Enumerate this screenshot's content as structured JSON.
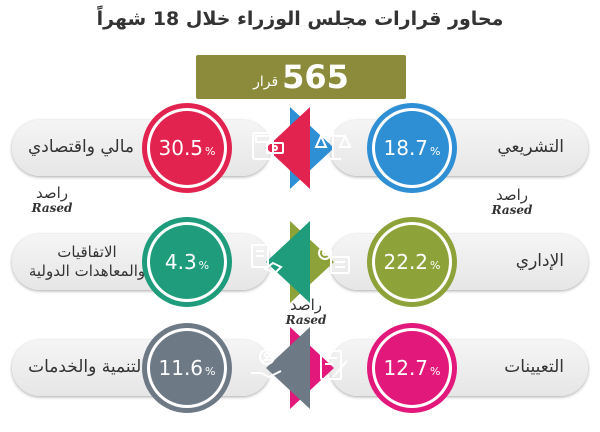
{
  "title": "محاور قرارات مجلس الوزراء خلال 18 شهراً",
  "total": {
    "value": "565",
    "unit": "قرار"
  },
  "watermark": {
    "arabic": "راصد",
    "latin": "Rased"
  },
  "items": [
    {
      "label": "التشريعي",
      "value": "18.7",
      "color": "#2f8fd4",
      "icon": "scales-icon"
    },
    {
      "label": "مالي واقتصادي",
      "value": "30.5",
      "color": "#e3234f",
      "icon": "calculator-money-icon"
    },
    {
      "label": "الإداري",
      "value": "22.2",
      "color": "#8ea23a",
      "icon": "gear-checklist-icon"
    },
    {
      "label": "الاتفاقيات والمعاهدات الدولية",
      "value": "4.3",
      "color": "#1e9c7c",
      "icon": "handshake-document-icon"
    },
    {
      "label": "التعيينات",
      "value": "12.7",
      "color": "#e2197b",
      "icon": "document-pen-icon"
    },
    {
      "label": "التنمية والخدمات",
      "value": "11.6",
      "color": "#6d7985",
      "icon": "hand-person-icon"
    }
  ],
  "chart_data": {
    "type": "table",
    "title": "محاور قرارات مجلس الوزراء خلال 18 شهراً",
    "total_decisions": 565,
    "categories": [
      "التشريعي",
      "مالي واقتصادي",
      "الإداري",
      "الاتفاقيات والمعاهدات الدولية",
      "التعيينات",
      "التنمية والخدمات"
    ],
    "values": [
      18.7,
      30.5,
      22.2,
      4.3,
      12.7,
      11.6
    ],
    "unit": "%"
  },
  "pct_symbol": "%"
}
